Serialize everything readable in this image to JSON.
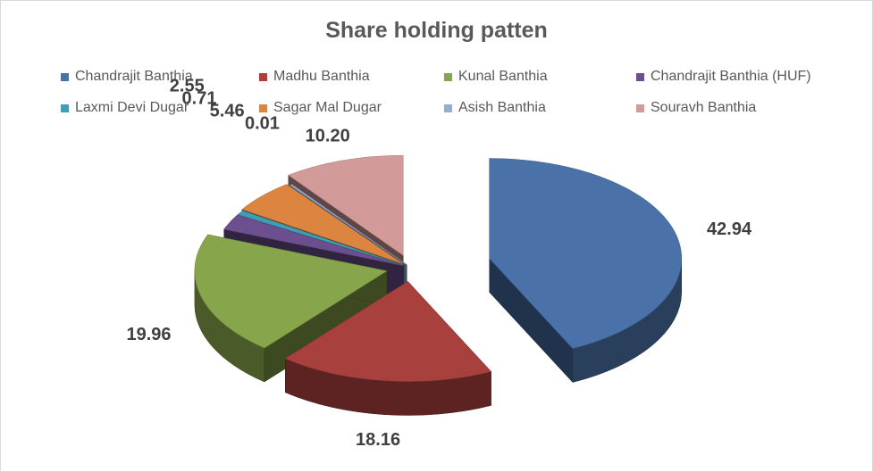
{
  "chart_data": {
    "type": "pie",
    "title": "Share holding patten",
    "legend_position": "top",
    "categories": [
      "Chandrajit Banthia",
      "Madhu Banthia",
      "Kunal Banthia",
      "Chandrajit Banthia (HUF)",
      "Laxmi Devi Dugar",
      "Sagar Mal Dugar",
      "Asish Banthia",
      "Souravh Banthia"
    ],
    "values": [
      42.94,
      18.16,
      19.96,
      2.55,
      0.71,
      5.46,
      0.01,
      10.2
    ],
    "data_labels": [
      "42.94",
      "18.16",
      "19.96",
      "2.55",
      "0.71",
      "5.46",
      "0.01",
      "10.20"
    ],
    "colors": [
      "#4a72a8",
      "#a8403e",
      "#87a54a",
      "#6c4f8f",
      "#3d9eb5",
      "#dc8540",
      "#94aed3",
      "#d39a9a"
    ],
    "style": "3d-exploded"
  }
}
